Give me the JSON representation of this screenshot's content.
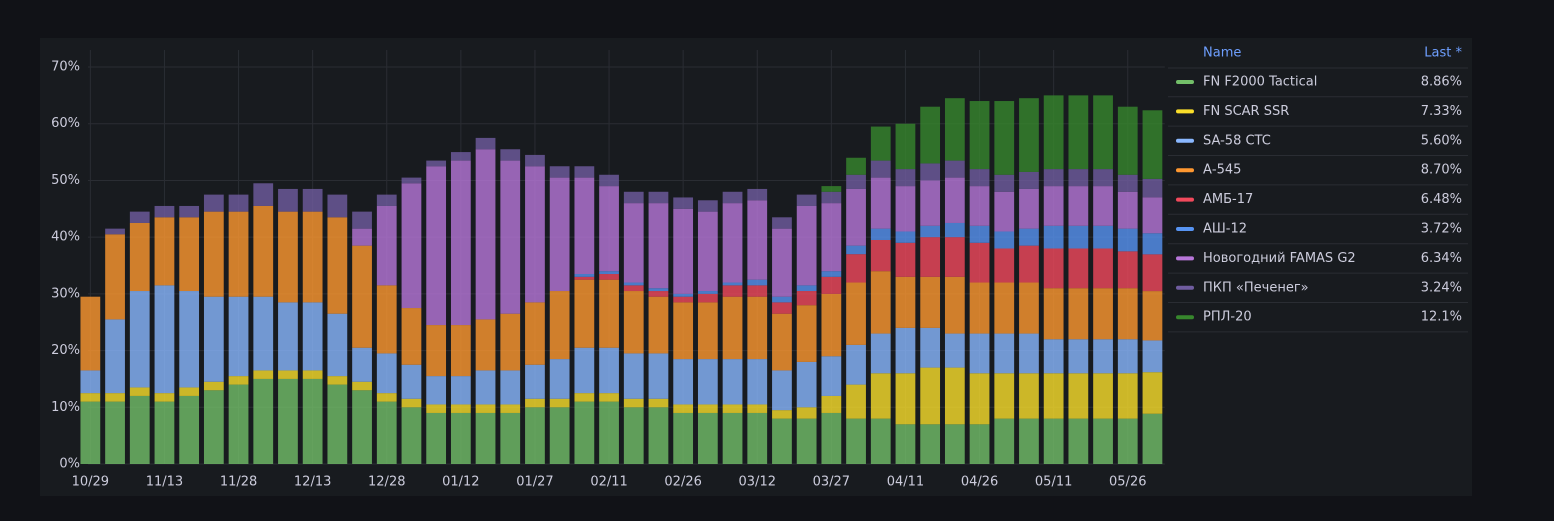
{
  "chart_data": {
    "type": "stacked-bar",
    "categories": [
      "10/29",
      null,
      null,
      "11/13",
      null,
      null,
      "11/28",
      null,
      null,
      "12/13",
      null,
      null,
      "12/28",
      null,
      null,
      "01/12",
      null,
      null,
      "01/27",
      null,
      null,
      "02/11",
      null,
      null,
      "02/26",
      null,
      null,
      "03/12",
      null,
      null,
      "03/27",
      null,
      null,
      "04/11",
      null,
      null,
      "04/26",
      null,
      null,
      "05/11",
      null,
      null,
      "05/26",
      null
    ],
    "ylim": [
      0,
      73
    ],
    "yticks": [
      {
        "value": 0,
        "label": "0%"
      },
      {
        "value": 10,
        "label": "10%"
      },
      {
        "value": 20,
        "label": "20%"
      },
      {
        "value": 30,
        "label": "30%"
      },
      {
        "value": 40,
        "label": "40%"
      },
      {
        "value": 50,
        "label": "50%"
      },
      {
        "value": 60,
        "label": "60%"
      },
      {
        "value": 70,
        "label": "70%"
      }
    ],
    "grid": true,
    "legend_header": [
      "Name",
      "Last *"
    ],
    "series": [
      {
        "name": "FN F2000 Tactical",
        "color": "#73bf69",
        "last": "8.86%",
        "values": [
          11,
          11,
          12,
          11,
          12,
          13,
          14,
          15,
          15,
          15,
          14,
          13,
          11,
          10,
          9,
          9,
          9,
          9,
          10,
          10,
          11,
          11,
          10,
          10,
          9,
          9,
          9,
          9,
          8,
          8,
          9,
          8,
          8,
          7,
          7,
          7,
          7,
          8,
          8,
          8,
          8,
          8,
          8,
          8.86
        ]
      },
      {
        "name": "FN SCAR SSR",
        "color": "#fade2a",
        "last": "7.33%",
        "values": [
          1.5,
          1.5,
          1.5,
          1.5,
          1.5,
          1.5,
          1.5,
          1.5,
          1.5,
          1.5,
          1.5,
          1.5,
          1.5,
          1.5,
          1.5,
          1.5,
          1.5,
          1.5,
          1.5,
          1.5,
          1.5,
          1.5,
          1.5,
          1.5,
          1.5,
          1.5,
          1.5,
          1.5,
          1.5,
          2,
          3,
          6,
          8,
          9,
          10,
          10,
          9,
          8,
          8,
          8,
          8,
          8,
          8,
          7.33
        ]
      },
      {
        "name": "SA-58 CTC",
        "color": "#8ab8ff",
        "last": "5.60%",
        "values": [
          4,
          13,
          17,
          19,
          17,
          15,
          14,
          13,
          12,
          12,
          11,
          6,
          7,
          6,
          5,
          5,
          6,
          6,
          6,
          7,
          8,
          8,
          8,
          8,
          8,
          8,
          8,
          8,
          7,
          8,
          7,
          7,
          7,
          8,
          7,
          6,
          7,
          7,
          7,
          6,
          6,
          6,
          6,
          5.6
        ]
      },
      {
        "name": "А-545",
        "color": "#ff9830",
        "last": "8.70%",
        "values": [
          13,
          15,
          12,
          12,
          13,
          15,
          15,
          16,
          16,
          16,
          17,
          18,
          12,
          10,
          9,
          9,
          9,
          10,
          11,
          12,
          12,
          12,
          11,
          10,
          10,
          10,
          11,
          11,
          10,
          10,
          11,
          11,
          11,
          9,
          9,
          10,
          9,
          9,
          9,
          9,
          9,
          9,
          9,
          8.7
        ]
      },
      {
        "name": "АМБ-17",
        "color": "#f2495c",
        "last": "6.48%",
        "values": [
          0,
          0,
          0,
          0,
          0,
          0,
          0,
          0,
          0,
          0,
          0,
          0,
          0,
          0,
          0,
          0,
          0,
          0,
          0,
          0,
          0.5,
          1,
          1,
          1,
          1,
          1.5,
          2,
          2,
          2,
          2.5,
          3,
          5,
          5.5,
          6,
          7,
          7,
          7,
          6,
          6.5,
          7,
          7,
          7,
          6.5,
          6.48
        ]
      },
      {
        "name": "АШ-12",
        "color": "#5794f2",
        "last": "3.72%",
        "values": [
          0,
          0,
          0,
          0,
          0,
          0,
          0,
          0,
          0,
          0,
          0,
          0,
          0,
          0,
          0,
          0,
          0,
          0,
          0,
          0,
          0.5,
          0.5,
          0.5,
          0.5,
          0.5,
          0.5,
          0.5,
          1,
          1,
          1,
          1,
          1.5,
          2,
          2,
          2,
          2.5,
          3,
          3,
          3,
          4,
          4,
          4,
          4,
          3.72
        ]
      },
      {
        "name": "Новогодний FAMAS G2",
        "color": "#b877d9",
        "last": "6.34%",
        "values": [
          0,
          0,
          0,
          0,
          0,
          0,
          0,
          0,
          0,
          0,
          0,
          3,
          14,
          22,
          28,
          29,
          30,
          27,
          24,
          20,
          17,
          15,
          14,
          15,
          15,
          14,
          14,
          14,
          12,
          14,
          12,
          10,
          9,
          8,
          8,
          8,
          7,
          7,
          7,
          7,
          7,
          7,
          6.5,
          6.34
        ]
      },
      {
        "name": "ПКП «Печенег»",
        "color": "#705da0",
        "last": "3.24%",
        "values": [
          0,
          1,
          2,
          2,
          2,
          3,
          3,
          4,
          4,
          4,
          4,
          3,
          2,
          1,
          1,
          1.5,
          2,
          2,
          2,
          2,
          2,
          2,
          2,
          2,
          2,
          2,
          2,
          2,
          2,
          2,
          2,
          2.5,
          3,
          3,
          3,
          3,
          3,
          3,
          3,
          3,
          3,
          3,
          3,
          3.24
        ]
      },
      {
        "name": "РПЛ-20",
        "color": "#37872d",
        "last": "12.1%",
        "values": [
          0,
          0,
          0,
          0,
          0,
          0,
          0,
          0,
          0,
          0,
          0,
          0,
          0,
          0,
          0,
          0,
          0,
          0,
          0,
          0,
          0,
          0,
          0,
          0,
          0,
          0,
          0,
          0,
          0,
          0,
          1,
          3,
          6,
          8,
          10,
          11,
          12,
          13,
          13,
          13,
          13,
          13,
          12,
          12.1
        ]
      }
    ]
  }
}
